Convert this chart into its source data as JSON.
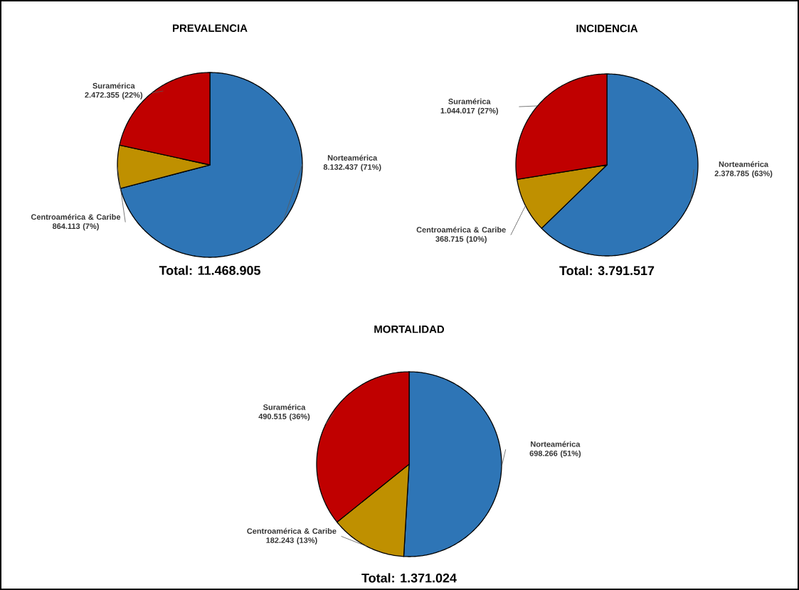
{
  "chart_data": [
    {
      "type": "pie",
      "title": "PREVALENCIA",
      "categories": [
        "Norteamérica",
        "Centroamérica & Caribe",
        "Suramérica"
      ],
      "values": [
        8132437,
        864113,
        2472355
      ],
      "colors": [
        "#2e75b6",
        "#bf9000",
        "#c00000"
      ],
      "value_labels": [
        "8.132.437 (71%)",
        "864.113 (7%)",
        "2.472.355 (22%)"
      ],
      "annotations": [
        "Total: 11.468.905"
      ]
    },
    {
      "type": "pie",
      "title": "INCIDENCIA",
      "categories": [
        "Norteamérica",
        "Centroamérica & Caribe",
        "Suramérica"
      ],
      "values": [
        2378785,
        368715,
        1044017
      ],
      "colors": [
        "#2e75b6",
        "#bf9000",
        "#c00000"
      ],
      "value_labels": [
        "2.378.785 (63%)",
        "368.715 (10%)",
        "1.044.017 (27%)"
      ],
      "annotations": [
        "Total: 3.791.517"
      ]
    },
    {
      "type": "pie",
      "title": "MORTALIDAD",
      "categories": [
        "Norteamérica",
        "Centroamérica & Caribe",
        "Suramérica"
      ],
      "values": [
        698266,
        182243,
        490515
      ],
      "colors": [
        "#2e75b6",
        "#bf9000",
        "#c00000"
      ],
      "value_labels": [
        "698.266 (51%)",
        "182.243 (13%)",
        "490.515 (36%)"
      ],
      "annotations": [
        "Total: 1.371.024"
      ]
    }
  ]
}
